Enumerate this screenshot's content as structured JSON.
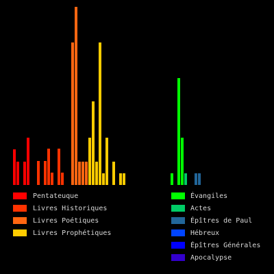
{
  "chart_data": {
    "type": "bar",
    "series": [
      {
        "name": "Pentateuque",
        "color": "#ff0000",
        "values": [
          52,
          34,
          0,
          34,
          69
        ]
      },
      {
        "name": "Livres Historiques",
        "color": "#ff3300",
        "values": [
          0,
          0,
          35,
          0,
          35,
          53,
          18,
          0,
          53,
          18,
          0,
          0
        ]
      },
      {
        "name": "Livres Poétiques",
        "color": "#ff6611",
        "values": [
          208,
          260,
          34,
          34,
          34
        ]
      },
      {
        "name": "Livres Prophétiques",
        "color": "#ffcc00",
        "values": [
          69,
          122,
          34,
          208,
          17,
          69,
          0,
          34,
          0,
          17,
          17
        ]
      },
      {
        "name": "Évangiles",
        "color": "#00ff00",
        "values": [
          17,
          0,
          156,
          69
        ]
      },
      {
        "name": "Actes",
        "color": "#00cc66",
        "values": [
          17
        ]
      },
      {
        "name": "Épîtres de Paul",
        "color": "#226699",
        "values": [
          0,
          0,
          17,
          17
        ]
      },
      {
        "name": "Hébreux",
        "color": "#0044ff",
        "values": []
      },
      {
        "name": "Épîtres Générales",
        "color": "#0000ff",
        "values": []
      },
      {
        "name": "Apocalypse",
        "color": "#3300cc",
        "values": []
      }
    ]
  }
}
